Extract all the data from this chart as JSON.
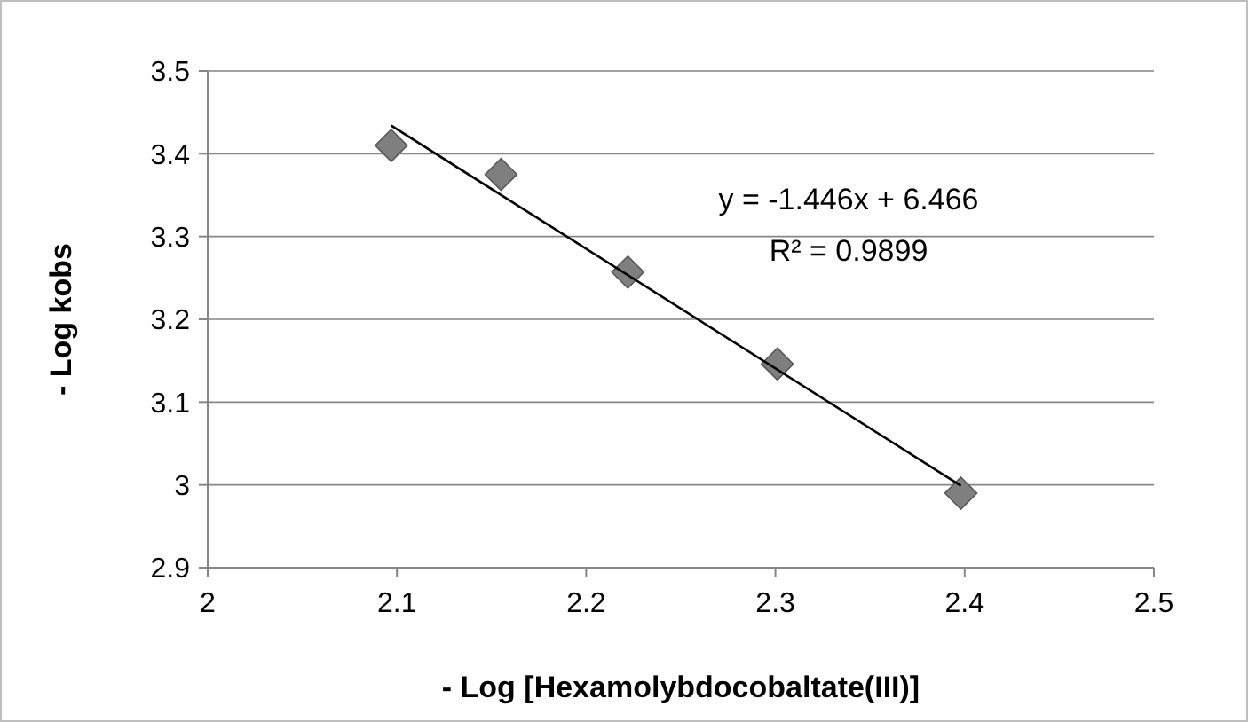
{
  "chart_data": {
    "type": "scatter",
    "xlabel": "- Log [Hexamolybdocobaltate(III)]",
    "ylabel": "- Log kobs",
    "xlim": [
      2,
      2.5
    ],
    "xticks": [
      2,
      2.1,
      2.2,
      2.3,
      2.4,
      2.5
    ],
    "ylim": [
      2.9,
      3.5
    ],
    "yticks": [
      2.9,
      3,
      3.1,
      3.2,
      3.3,
      3.4,
      3.5
    ],
    "grid": "y",
    "series": [
      {
        "color": "#7f7f7f",
        "marker": "diamond",
        "x": [
          2.097,
          2.155,
          2.222,
          2.301,
          2.398
        ],
        "values": [
          3.41,
          3.375,
          3.257,
          3.146,
          2.99
        ]
      },
      {
        "type": "line",
        "color": "#000000",
        "marker": "none",
        "line_style": "solid",
        "x": [
          2.097,
          2.398
        ],
        "values": [
          3.434,
          2.999
        ]
      }
    ],
    "annotations": [
      "y = -1.446x + 6.466",
      "R² = 0.9899"
    ]
  }
}
